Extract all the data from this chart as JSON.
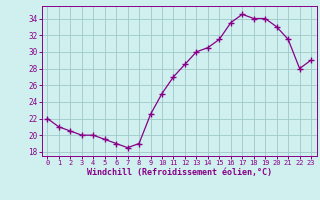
{
  "x": [
    0,
    1,
    2,
    3,
    4,
    5,
    6,
    7,
    8,
    9,
    10,
    11,
    12,
    13,
    14,
    15,
    16,
    17,
    18,
    19,
    20,
    21,
    22,
    23
  ],
  "y": [
    22,
    21,
    20.5,
    20,
    20,
    19.5,
    19,
    18.5,
    19,
    22.5,
    25,
    27,
    28.5,
    30,
    30.5,
    31.5,
    33.5,
    34.5,
    34,
    34,
    33,
    31.5,
    28,
    29
  ],
  "line_color": "#880088",
  "marker": "+",
  "bg_color": "#d0f0f0",
  "grid_color": "#a0c8c8",
  "xlabel": "Windchill (Refroidissement éolien,°C)",
  "xlabel_color": "#880088",
  "tick_color": "#880088",
  "ylim": [
    17.5,
    35.5
  ],
  "xlim": [
    -0.5,
    23.5
  ],
  "yticks": [
    18,
    20,
    22,
    24,
    26,
    28,
    30,
    32,
    34
  ],
  "xticks": [
    0,
    1,
    2,
    3,
    4,
    5,
    6,
    7,
    8,
    9,
    10,
    11,
    12,
    13,
    14,
    15,
    16,
    17,
    18,
    19,
    20,
    21,
    22,
    23
  ]
}
